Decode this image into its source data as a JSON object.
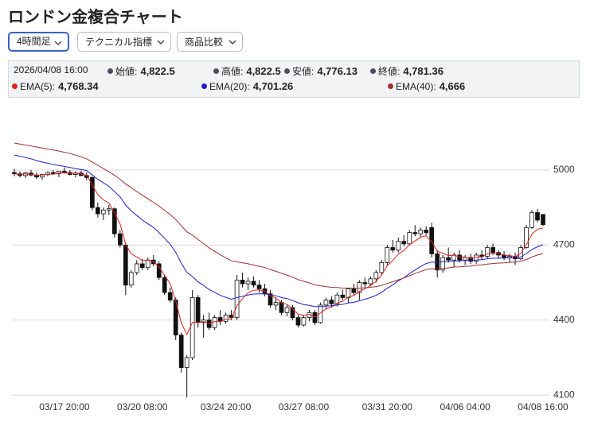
{
  "ui": {
    "title": "ロンドン金複合チャート",
    "controls": [
      "4時間足",
      "テクニカル指標",
      "商品比較"
    ],
    "info": {
      "time": "2026/04/08 16:00",
      "ohlc": [
        {
          "label": "始値:",
          "value": "4,822.5"
        },
        {
          "label": "高値:",
          "value": "4,822.5"
        },
        {
          "label": "安値:",
          "value": "4,776.13"
        },
        {
          "label": "終値:",
          "value": "4,781.36"
        }
      ],
      "ema": [
        {
          "label": "EMA(5):",
          "value": "4,768.34",
          "color": "#e02020"
        },
        {
          "label": "EMA(20):",
          "value": "4,701.26",
          "color": "#2020c8"
        },
        {
          "label": "EMA(40):",
          "value": "4,666",
          "color": "#a03030"
        }
      ]
    }
  },
  "chart_data": {
    "type": "candlestick",
    "categories": [
      null,
      null,
      null,
      null,
      null,
      null,
      null,
      null,
      null,
      "03/17 20:00",
      null,
      null,
      null,
      null,
      null,
      null,
      null,
      null,
      null,
      null,
      null,
      null,
      null,
      "03/20 08:00",
      null,
      null,
      null,
      null,
      null,
      null,
      null,
      null,
      null,
      null,
      null,
      null,
      null,
      null,
      "03/24 20:00",
      null,
      null,
      null,
      null,
      null,
      null,
      null,
      null,
      null,
      null,
      null,
      null,
      null,
      "03/27 08:00",
      null,
      null,
      null,
      null,
      null,
      null,
      null,
      null,
      null,
      null,
      null,
      null,
      null,
      null,
      "03/31 20:00",
      null,
      null,
      null,
      null,
      null,
      null,
      null,
      null,
      null,
      null,
      null,
      null,
      null,
      "04/06 04:00",
      null,
      null,
      null,
      null,
      null,
      null,
      null,
      null,
      null,
      null,
      null,
      null,
      null,
      "04/08 16:00"
    ],
    "candles": {
      "open": [
        4990,
        4985,
        4978,
        4988,
        4980,
        4972,
        4982,
        4990,
        4985,
        4995,
        4990,
        4982,
        4988,
        4978,
        4970,
        4850,
        4825,
        4840,
        4845,
        4745,
        4700,
        4540,
        4590,
        4625,
        4610,
        4640,
        4625,
        4570,
        4510,
        4480,
        4340,
        4210,
        4250,
        4490,
        4390,
        4400,
        4370,
        4410,
        4395,
        4420,
        4410,
        4560,
        4545,
        4555,
        4540,
        4525,
        4505,
        4460,
        4470,
        4430,
        4450,
        4410,
        4380,
        4410,
        4430,
        4390,
        4460,
        4480,
        4465,
        4500,
        4490,
        4525,
        4510,
        4550,
        4545,
        4565,
        4590,
        4630,
        4690,
        4680,
        4715,
        4705,
        4750,
        4745,
        4760,
        4770,
        4665,
        4600,
        4650,
        4640,
        4660,
        4640,
        4650,
        4635,
        4660,
        4655,
        4690,
        4670,
        4660,
        4650,
        4655,
        4645,
        4690,
        4770,
        4830,
        4822.5
      ],
      "high": [
        5005,
        4995,
        4992,
        5000,
        4990,
        4985,
        4995,
        5000,
        4992,
        5010,
        5000,
        4995,
        4998,
        4990,
        4975,
        4870,
        4850,
        4860,
        4850,
        4760,
        4710,
        4600,
        4640,
        4645,
        4650,
        4660,
        4635,
        4580,
        4530,
        4490,
        4350,
        4260,
        4520,
        4500,
        4420,
        4430,
        4420,
        4440,
        4430,
        4440,
        4580,
        4590,
        4570,
        4575,
        4560,
        4545,
        4520,
        4490,
        4480,
        4460,
        4460,
        4420,
        4420,
        4440,
        4440,
        4470,
        4490,
        4495,
        4510,
        4520,
        4530,
        4545,
        4560,
        4570,
        4575,
        4600,
        4640,
        4700,
        4720,
        4730,
        4740,
        4760,
        4780,
        4770,
        4775,
        4790,
        4680,
        4660,
        4690,
        4670,
        4680,
        4660,
        4665,
        4670,
        4680,
        4700,
        4705,
        4680,
        4675,
        4665,
        4670,
        4700,
        4780,
        4840,
        4845,
        4822.5
      ],
      "low": [
        4975,
        4970,
        4968,
        4975,
        4965,
        4960,
        4975,
        4980,
        4972,
        4985,
        4978,
        4970,
        4975,
        4960,
        4840,
        4810,
        4800,
        4820,
        4730,
        4690,
        4500,
        4530,
        4580,
        4600,
        4600,
        4615,
        4560,
        4500,
        4470,
        4320,
        4190,
        4090,
        4240,
        4370,
        4330,
        4360,
        4360,
        4380,
        4385,
        4400,
        4400,
        4530,
        4520,
        4530,
        4510,
        4495,
        4450,
        4440,
        4420,
        4415,
        4400,
        4370,
        4375,
        4395,
        4380,
        4385,
        4445,
        4450,
        4455,
        4480,
        4470,
        4500,
        4480,
        4530,
        4535,
        4550,
        4580,
        4620,
        4670,
        4670,
        4695,
        4700,
        4735,
        4730,
        4740,
        4650,
        4570,
        4590,
        4630,
        4610,
        4630,
        4620,
        4625,
        4625,
        4640,
        4645,
        4660,
        4645,
        4640,
        4630,
        4620,
        4640,
        4685,
        4765,
        4790,
        4776.13
      ],
      "close": [
        4985,
        4978,
        4988,
        4980,
        4972,
        4982,
        4990,
        4985,
        4995,
        4990,
        4982,
        4988,
        4978,
        4970,
        4850,
        4825,
        4840,
        4845,
        4745,
        4700,
        4540,
        4590,
        4625,
        4610,
        4640,
        4625,
        4570,
        4510,
        4480,
        4340,
        4210,
        4250,
        4490,
        4390,
        4400,
        4370,
        4410,
        4395,
        4420,
        4410,
        4560,
        4545,
        4555,
        4540,
        4525,
        4505,
        4460,
        4470,
        4430,
        4450,
        4410,
        4380,
        4410,
        4430,
        4390,
        4460,
        4480,
        4465,
        4500,
        4490,
        4525,
        4510,
        4550,
        4545,
        4565,
        4590,
        4630,
        4690,
        4680,
        4715,
        4705,
        4750,
        4745,
        4760,
        4750,
        4665,
        4600,
        4650,
        4640,
        4660,
        4640,
        4650,
        4635,
        4660,
        4655,
        4690,
        4670,
        4660,
        4650,
        4655,
        4645,
        4690,
        4770,
        4830,
        4800,
        4781.36
      ],
      "up_color": "#ffffff",
      "down_color": "#111111",
      "edge_color": "#111111"
    },
    "series": [
      {
        "color": "#e02020",
        "values": [
          4985,
          4983,
          4985,
          4983,
          4979,
          4980,
          4983,
          4984,
          4988,
          4989,
          4986,
          4987,
          4984,
          4979,
          4940,
          4902,
          4881,
          4869,
          4828,
          4785,
          4703,
          4665,
          4652,
          4638,
          4639,
          4634,
          4613,
          4579,
          4546,
          4477,
          4388,
          4342,
          4391,
          4391,
          4394,
          4386,
          4394,
          4394,
          4403,
          4405,
          4457,
          4486,
          4509,
          4519,
          4521,
          4516,
          4497,
          4488,
          4469,
          4463,
          4445,
          4423,
          4419,
          4423,
          4412,
          4428,
          4445,
          4452,
          4468,
          4475,
          4492,
          4498,
          4515,
          4525,
          4538,
          4555,
          4580,
          4617,
          4638,
          4664,
          4678,
          4702,
          4716,
          4731,
          4737,
          4713,
          4675,
          4667,
          4658,
          4659,
          4653,
          4652,
          4646,
          4651,
          4652,
          4665,
          4667,
          4665,
          4660,
          4658,
          4654,
          4666,
          4701,
          4744,
          4763,
          4768.34
        ]
      },
      {
        "color": "#2020c8",
        "values": [
          5060,
          5055,
          5050,
          5045,
          5038,
          5032,
          5027,
          5022,
          5018,
          5014,
          5010,
          5006,
          5002,
          4998,
          4980,
          4963,
          4949,
          4935,
          4914,
          4893,
          4860,
          4837,
          4818,
          4800,
          4785,
          4770,
          4750,
          4727,
          4703,
          4671,
          4627,
          4591,
          4574,
          4553,
          4539,
          4522,
          4511,
          4499,
          4491,
          4483,
          4490,
          4495,
          4500,
          4504,
          4505,
          4505,
          4500,
          4497,
          4490,
          4486,
          4478,
          4469,
          4462,
          4459,
          4454,
          4454,
          4456,
          4457,
          4460,
          4463,
          4468,
          4471,
          4477,
          4483,
          4490,
          4499,
          4511,
          4527,
          4541,
          4557,
          4569,
          4586,
          4600,
          4614,
          4626,
          4632,
          4631,
          4633,
          4634,
          4636,
          4637,
          4638,
          4638,
          4640,
          4642,
          4645,
          4647,
          4648,
          4648,
          4649,
          4648,
          4652,
          4666,
          4682,
          4693,
          4701.26
        ]
      },
      {
        "color": "#a03030",
        "values": [
          5108,
          5104,
          5100,
          5096,
          5092,
          5088,
          5084,
          5080,
          5076,
          5071,
          5066,
          5060,
          5053,
          5045,
          5032,
          5019,
          5006,
          4993,
          4979,
          4963,
          4945,
          4929,
          4914,
          4899,
          4885,
          4871,
          4856,
          4839,
          4822,
          4802,
          4777,
          4753,
          4740,
          4722,
          4706,
          4689,
          4675,
          4661,
          4649,
          4637,
          4633,
          4629,
          4625,
          4620,
          4615,
          4610,
          4602,
          4595,
          4587,
          4580,
          4572,
          4562,
          4555,
          4549,
          4541,
          4537,
          4534,
          4531,
          4530,
          4528,
          4528,
          4527,
          4528,
          4529,
          4531,
          4534,
          4539,
          4546,
          4553,
          4561,
          4568,
          4577,
          4586,
          4594,
          4602,
          4605,
          4605,
          4607,
          4609,
          4612,
          4613,
          4615,
          4616,
          4619,
          4621,
          4624,
          4626,
          4628,
          4629,
          4631,
          4632,
          4635,
          4642,
          4652,
          4660,
          4666
        ]
      }
    ],
    "ylim": [
      4075,
      5235
    ],
    "yticks": [
      4100,
      4400,
      4700,
      5000
    ],
    "grid": true
  }
}
